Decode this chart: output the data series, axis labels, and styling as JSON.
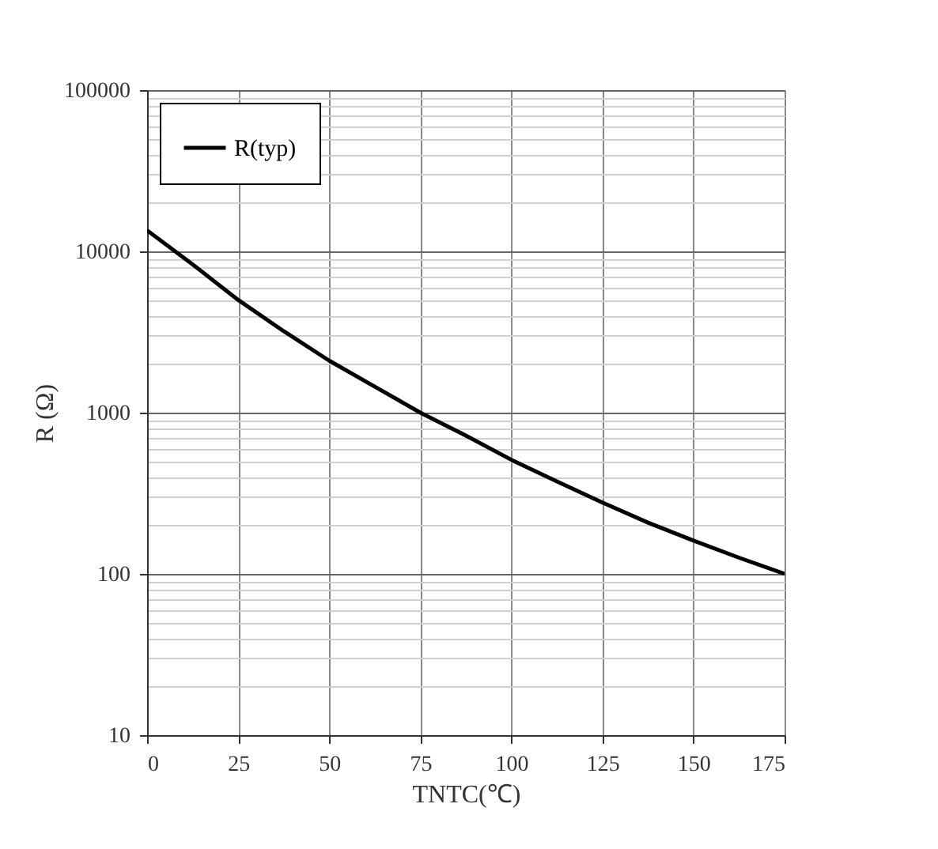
{
  "chart_data": {
    "type": "line",
    "xlabel": "TNTC(℃)",
    "ylabel": "R (Ω)",
    "x": [
      0,
      12.5,
      25,
      37.5,
      50,
      62.5,
      75,
      87.5,
      100,
      112.5,
      125,
      137.5,
      150,
      162.5,
      175
    ],
    "series": [
      {
        "name": "R(typ)",
        "color": "#000000",
        "values": [
          13500,
          8300,
          5000,
          3200,
          2100,
          1450,
          1000,
          720,
          510,
          375,
          277,
          208,
          161,
          126,
          100
        ]
      }
    ],
    "xlim": [
      0,
      175
    ],
    "xticks": [
      0,
      25,
      50,
      75,
      100,
      125,
      150,
      175
    ],
    "ylim": [
      10,
      100000
    ],
    "log": "y",
    "yticks": [
      10,
      {
        "value": 20,
        "label": null
      },
      {
        "value": 30,
        "label": null
      },
      {
        "value": 40,
        "label": null
      },
      {
        "value": 50,
        "label": null
      },
      {
        "value": 60,
        "label": null
      },
      {
        "value": 70,
        "label": null
      },
      {
        "value": 80,
        "label": null
      },
      {
        "value": 90,
        "label": null
      },
      100,
      {
        "value": 200,
        "label": null
      },
      {
        "value": 300,
        "label": null
      },
      {
        "value": 400,
        "label": null
      },
      {
        "value": 500,
        "label": null
      },
      {
        "value": 600,
        "label": null
      },
      {
        "value": 700,
        "label": null
      },
      {
        "value": 800,
        "label": null
      },
      {
        "value": 900,
        "label": null
      },
      1000,
      {
        "value": 2000,
        "label": null
      },
      {
        "value": 3000,
        "label": null
      },
      {
        "value": 4000,
        "label": null
      },
      {
        "value": 5000,
        "label": null
      },
      {
        "value": 6000,
        "label": null
      },
      {
        "value": 7000,
        "label": null
      },
      {
        "value": 8000,
        "label": null
      },
      {
        "value": 9000,
        "label": null
      },
      10000,
      {
        "value": 20000,
        "label": null
      },
      {
        "value": 30000,
        "label": null
      },
      {
        "value": 40000,
        "label": null
      },
      {
        "value": 50000,
        "label": null
      },
      {
        "value": 60000,
        "label": null
      },
      {
        "value": 70000,
        "label": null
      },
      {
        "value": 80000,
        "label": null
      },
      {
        "value": 90000,
        "label": null
      },
      100000
    ],
    "grid": true,
    "legend": "top left",
    "marker": "none",
    "line_style": "solid"
  }
}
